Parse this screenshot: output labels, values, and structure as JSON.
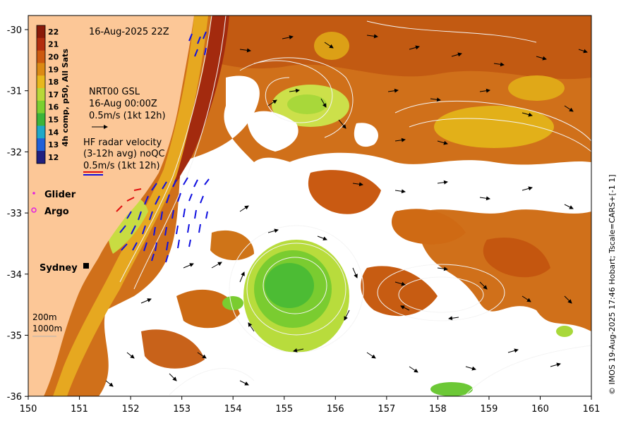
{
  "map": {
    "title": "16-Aug-2025 22Z",
    "x_ticks": [
      "150",
      "151",
      "152",
      "153",
      "154",
      "155",
      "156",
      "157",
      "158",
      "159",
      "160",
      "161"
    ],
    "y_ticks": [
      "-30",
      "-31",
      "-32",
      "-33",
      "-34",
      "-35",
      "-36"
    ],
    "colorbar": {
      "label": "4h comp, p50, All Sats",
      "values": [
        "22",
        "21",
        "20",
        "19",
        "18",
        "17",
        "16",
        "15",
        "14",
        "13",
        "12"
      ],
      "colors": [
        "#8a1a0a",
        "#b32d0f",
        "#cd5a10",
        "#dc8a14",
        "#e8b81c",
        "#b8d838",
        "#7cd030",
        "#3cb43a",
        "#20a8c8",
        "#2060d8",
        "#202080"
      ]
    },
    "gsl": {
      "line1": "NRT00 GSL",
      "line2": "16-Aug 00:00Z",
      "line3": "0.5m/s (1kt 12h)"
    },
    "hf_radar": {
      "line1": "HF radar velocity",
      "line2": "(3-12h avg) noQC",
      "line3": "0.5m/s (1kt 12h)"
    },
    "legend": {
      "glider": "Glider",
      "argo": "Argo"
    },
    "city": "Sydney",
    "depth": {
      "a": "200m",
      "b": "1000m"
    },
    "credit": "© IMOS 19-Aug-2025 17:46 Hobart; Tscale=CARS+[-1 1]",
    "colors": {
      "land": "#fcc797",
      "warm": "#cd6a12",
      "eac": "#a82a10",
      "eddy": "#6cc838",
      "hf_blue": "#1010e0",
      "hf_red": "#e01010",
      "contour": "#f4f4f4"
    }
  }
}
